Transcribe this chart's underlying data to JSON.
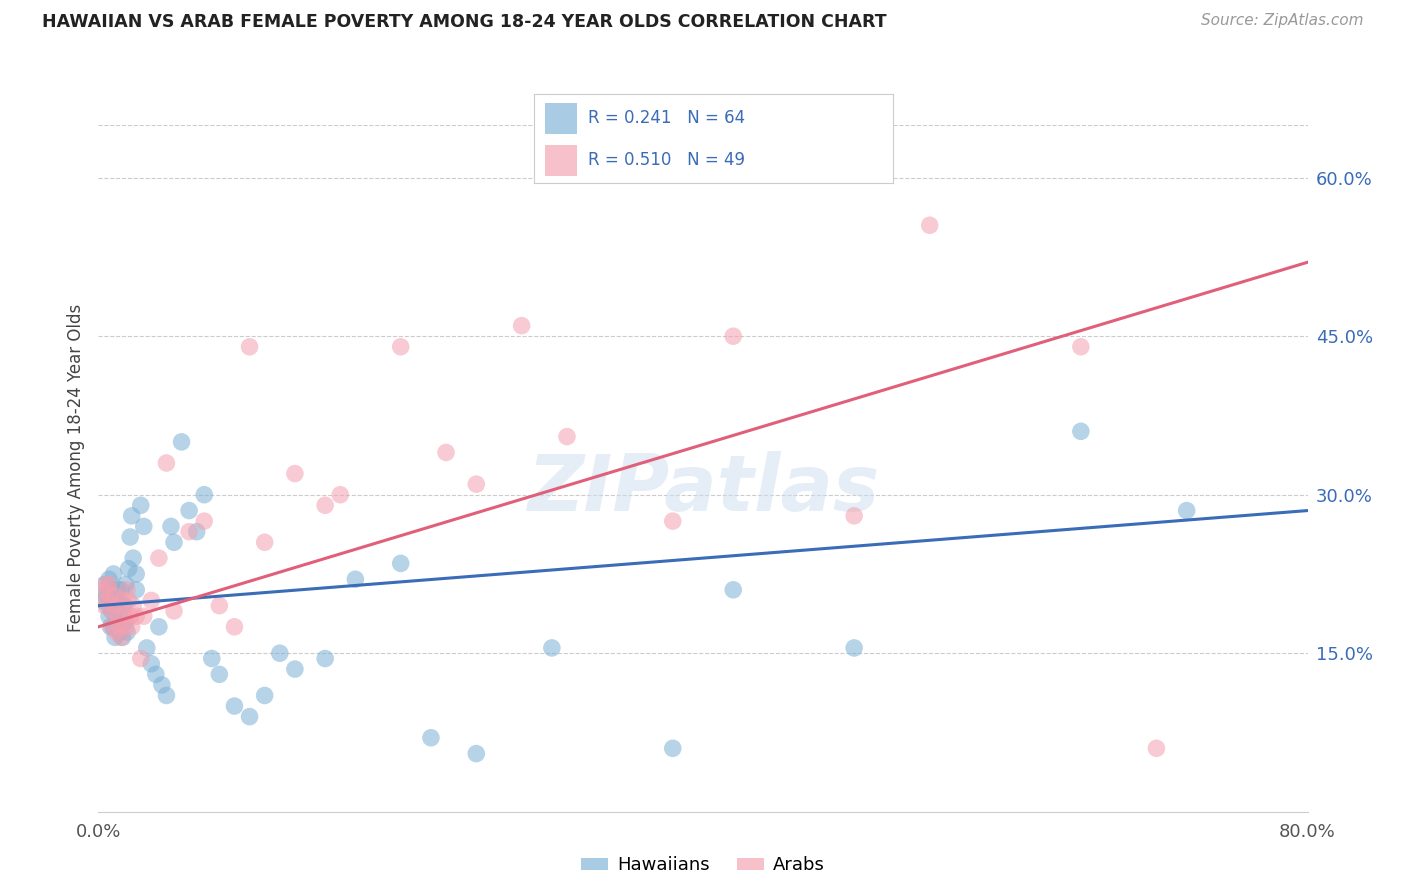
{
  "title": "HAWAIIAN VS ARAB FEMALE POVERTY AMONG 18-24 YEAR OLDS CORRELATION CHART",
  "source": "Source: ZipAtlas.com",
  "ylabel": "Female Poverty Among 18-24 Year Olds",
  "xmin": 0.0,
  "xmax": 0.8,
  "ymin": 0.0,
  "ymax": 0.65,
  "ytick_positions": [
    0.15,
    0.3,
    0.45,
    0.6
  ],
  "ytick_labels": [
    "15.0%",
    "30.0%",
    "45.0%",
    "60.0%"
  ],
  "hawaiian_color": "#7bafd4",
  "arab_color": "#f4a0b0",
  "hawaiian_line_color": "#3b6cb7",
  "arab_line_color": "#e0607a",
  "legend_text_color": "#3b6cb7",
  "background_color": "#ffffff",
  "grid_color": "#cccccc",
  "R_hawaiian": 0.241,
  "N_hawaiian": 64,
  "R_arab": 0.51,
  "N_arab": 49,
  "haw_line_x0": 0.0,
  "haw_line_y0": 0.195,
  "haw_line_x1": 0.8,
  "haw_line_y1": 0.285,
  "arab_line_x0": 0.0,
  "arab_line_y0": 0.175,
  "arab_line_x1": 0.8,
  "arab_line_y1": 0.52,
  "hawaiians_x": [
    0.003,
    0.004,
    0.005,
    0.006,
    0.007,
    0.007,
    0.008,
    0.008,
    0.009,
    0.009,
    0.01,
    0.01,
    0.011,
    0.012,
    0.012,
    0.013,
    0.014,
    0.014,
    0.015,
    0.015,
    0.016,
    0.016,
    0.017,
    0.018,
    0.018,
    0.019,
    0.02,
    0.021,
    0.022,
    0.023,
    0.025,
    0.025,
    0.028,
    0.03,
    0.032,
    0.035,
    0.038,
    0.04,
    0.042,
    0.045,
    0.048,
    0.05,
    0.055,
    0.06,
    0.065,
    0.07,
    0.075,
    0.08,
    0.09,
    0.1,
    0.11,
    0.12,
    0.13,
    0.15,
    0.17,
    0.2,
    0.22,
    0.25,
    0.3,
    0.38,
    0.42,
    0.5,
    0.65,
    0.72
  ],
  "hawaiians_y": [
    0.2,
    0.215,
    0.205,
    0.195,
    0.22,
    0.185,
    0.2,
    0.175,
    0.21,
    0.19,
    0.225,
    0.175,
    0.165,
    0.2,
    0.18,
    0.21,
    0.19,
    0.17,
    0.21,
    0.18,
    0.195,
    0.165,
    0.195,
    0.215,
    0.18,
    0.17,
    0.23,
    0.26,
    0.28,
    0.24,
    0.21,
    0.225,
    0.29,
    0.27,
    0.155,
    0.14,
    0.13,
    0.175,
    0.12,
    0.11,
    0.27,
    0.255,
    0.35,
    0.285,
    0.265,
    0.3,
    0.145,
    0.13,
    0.1,
    0.09,
    0.11,
    0.15,
    0.135,
    0.145,
    0.22,
    0.235,
    0.07,
    0.055,
    0.155,
    0.06,
    0.21,
    0.155,
    0.36,
    0.285
  ],
  "arabs_x": [
    0.003,
    0.004,
    0.005,
    0.006,
    0.007,
    0.008,
    0.009,
    0.009,
    0.01,
    0.011,
    0.012,
    0.013,
    0.014,
    0.015,
    0.016,
    0.017,
    0.018,
    0.019,
    0.02,
    0.021,
    0.022,
    0.023,
    0.025,
    0.028,
    0.03,
    0.035,
    0.04,
    0.045,
    0.05,
    0.06,
    0.07,
    0.08,
    0.09,
    0.1,
    0.11,
    0.13,
    0.15,
    0.16,
    0.2,
    0.23,
    0.25,
    0.28,
    0.31,
    0.38,
    0.42,
    0.5,
    0.55,
    0.65,
    0.7
  ],
  "arabs_y": [
    0.21,
    0.195,
    0.215,
    0.2,
    0.215,
    0.205,
    0.19,
    0.175,
    0.205,
    0.195,
    0.17,
    0.185,
    0.175,
    0.165,
    0.2,
    0.185,
    0.175,
    0.21,
    0.2,
    0.185,
    0.175,
    0.195,
    0.185,
    0.145,
    0.185,
    0.2,
    0.24,
    0.33,
    0.19,
    0.265,
    0.275,
    0.195,
    0.175,
    0.44,
    0.255,
    0.32,
    0.29,
    0.3,
    0.44,
    0.34,
    0.31,
    0.46,
    0.355,
    0.275,
    0.45,
    0.28,
    0.555,
    0.44,
    0.06
  ]
}
